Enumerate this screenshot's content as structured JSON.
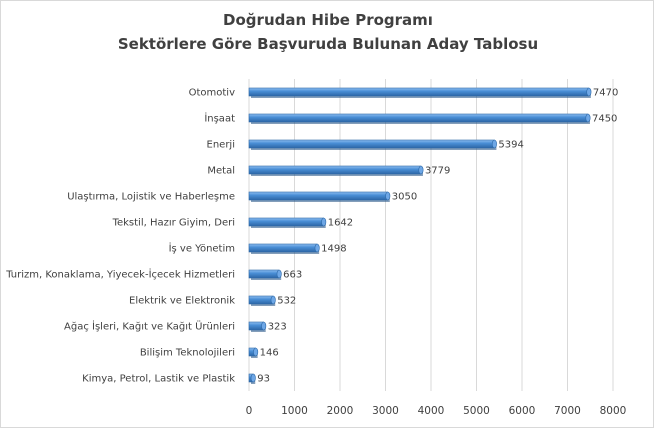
{
  "chart_data": {
    "type": "bar",
    "orientation": "horizontal",
    "title_lines": [
      "Doğrudan Hibe Programı",
      "Sektörlere Göre Başvuruda Bulunan Aday Tablosu"
    ],
    "categories": [
      "Otomotiv",
      "İnşaat",
      "Enerji",
      "Metal",
      "Ulaştırma, Lojistik ve Haberleşme",
      "Tekstil, Hazır Giyim, Deri",
      "İş ve Yönetim",
      "Turizm, Konaklama, Yiyecek-İçecek Hizmetleri",
      "Elektrik ve Elektronik",
      "Ağaç İşleri, Kağıt ve Kağıt Ürünleri",
      "Bilişim Teknolojileri",
      "Kimya, Petrol, Lastik ve Plastik"
    ],
    "values": [
      7470,
      7450,
      5394,
      3779,
      3050,
      1642,
      1498,
      663,
      532,
      323,
      146,
      93
    ],
    "data_labels": [
      "7470",
      "7450",
      "5394",
      "3779",
      "3050",
      "1642",
      "1498",
      "663",
      "532",
      "323",
      "146",
      "93"
    ],
    "xlim": [
      0,
      8000
    ],
    "x_ticks": [
      0,
      1000,
      2000,
      3000,
      4000,
      5000,
      6000,
      7000,
      8000
    ],
    "x_tick_labels": [
      "0",
      "1000",
      "2000",
      "3000",
      "4000",
      "5000",
      "6000",
      "7000",
      "8000"
    ],
    "grid": true,
    "legend": "none",
    "bar_color": "#4a8fd6",
    "bar_edge_color": "#2f6aa8",
    "grid_color": "#d9d9d9",
    "text_color": "#404040"
  }
}
